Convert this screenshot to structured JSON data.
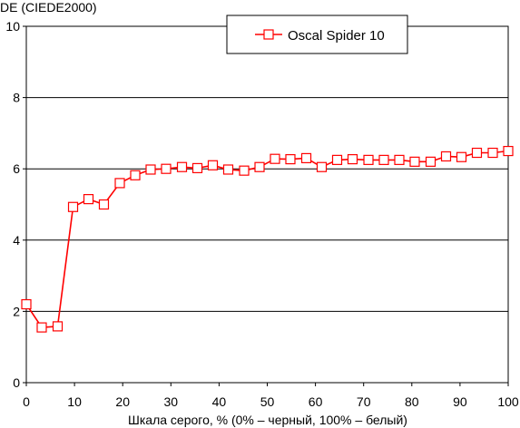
{
  "chart_data": {
    "type": "line",
    "title": "",
    "ylabel": "DE (CIEDE2000)",
    "xlabel": "Шкала серого, % (0% – черный, 100% – белый)",
    "xlim": [
      0,
      100
    ],
    "ylim": [
      0,
      10
    ],
    "x_ticks": [
      "0",
      "10",
      "20",
      "30",
      "40",
      "50",
      "60",
      "70",
      "80",
      "90",
      "100"
    ],
    "y_ticks": [
      "0",
      "2",
      "4",
      "6",
      "8",
      "10"
    ],
    "grid": "horizontal",
    "legend_position": "top-center",
    "series": [
      {
        "name": "Oscal Spider 10",
        "color": "#ff0000",
        "marker": "open-square",
        "x": [
          0,
          3.2,
          6.5,
          9.7,
          12.9,
          16.1,
          19.4,
          22.6,
          25.8,
          29.0,
          32.3,
          35.5,
          38.7,
          41.9,
          45.2,
          48.4,
          51.6,
          54.8,
          58.1,
          61.3,
          64.5,
          67.7,
          71.0,
          74.2,
          77.4,
          80.6,
          83.9,
          87.1,
          90.3,
          93.5,
          96.8,
          100
        ],
        "y": [
          2.2,
          1.55,
          1.58,
          4.93,
          5.15,
          5.0,
          5.6,
          5.82,
          5.98,
          6.0,
          6.05,
          6.02,
          6.1,
          5.98,
          5.95,
          6.05,
          6.28,
          6.27,
          6.3,
          6.05,
          6.25,
          6.27,
          6.25,
          6.25,
          6.25,
          6.2,
          6.2,
          6.35,
          6.33,
          6.45,
          6.45,
          6.5
        ]
      }
    ]
  }
}
